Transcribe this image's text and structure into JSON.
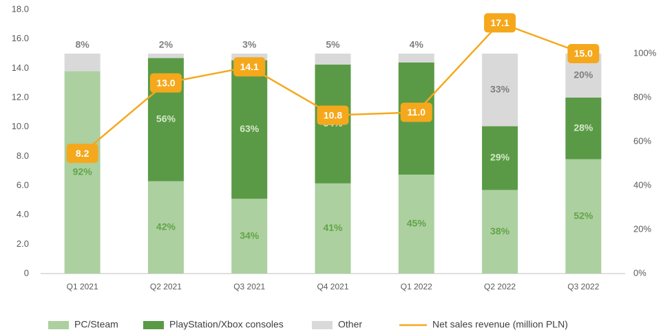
{
  "chart_data": {
    "type": "bar-line",
    "categories": [
      "Q1 2021",
      "Q2 2021",
      "Q3 2021",
      "Q4 2021",
      "Q1 2022",
      "Q2 2022",
      "Q3 2022"
    ],
    "series": [
      {
        "name": "PC/Steam",
        "type": "bar",
        "axis": "y2",
        "color": "#acd0a0",
        "label_color": "#62a447",
        "values": [
          92,
          42,
          34,
          41,
          45,
          38,
          52
        ],
        "value_labels": [
          "92%",
          "42%",
          "34%",
          "41%",
          "45%",
          "38%",
          "52%"
        ]
      },
      {
        "name": "PlayStation/Xbox consoles",
        "type": "bar",
        "axis": "y2",
        "color": "#5a9a46",
        "label_color": "#d4e8c8",
        "values": [
          0,
          56,
          63,
          54,
          51,
          29,
          28
        ],
        "value_labels": [
          null,
          "56%",
          "63%",
          "54%",
          "51%",
          "29%",
          "28%"
        ]
      },
      {
        "name": "Other",
        "type": "bar",
        "axis": "y2",
        "color": "#d9d9d9",
        "label_color": "#7f7f7f",
        "values": [
          8,
          2,
          3,
          5,
          4,
          33,
          20
        ],
        "value_labels": [
          "8%",
          "2%",
          "3%",
          "5%",
          "4%",
          "33%",
          "20%"
        ]
      },
      {
        "name": "Net sales revenue (million PLN)",
        "type": "line",
        "color": "#f5a81c",
        "values": [
          8.2,
          13.0,
          14.1,
          10.8,
          11.0,
          17.1,
          15.0
        ],
        "value_labels": [
          "8.2",
          "13.0",
          "14.1",
          "10.8",
          "11.0",
          "17.1",
          "15.0"
        ]
      }
    ],
    "ylim": [
      0,
      18
    ],
    "yticks": [
      0,
      {
        "value": 2,
        "label": "2.0"
      },
      {
        "value": 4,
        "label": "4.0"
      },
      {
        "value": 6,
        "label": "6.0"
      },
      {
        "value": 8,
        "label": "8.0"
      },
      {
        "value": 10,
        "label": "10.0"
      },
      {
        "value": 12,
        "label": "12.0"
      },
      {
        "value": 14,
        "label": "14.0"
      },
      {
        "value": 16,
        "label": "16.0"
      },
      {
        "value": 18,
        "label": "18.0"
      }
    ],
    "y2lim": [
      0,
      120
    ],
    "y2ticks": [
      {
        "value": 0,
        "label": "0%"
      },
      {
        "value": 20,
        "label": "20%"
      },
      {
        "value": 40,
        "label": "40%"
      },
      {
        "value": 60,
        "label": "60%"
      },
      {
        "value": 80,
        "label": "80%"
      },
      {
        "value": 100,
        "label": "100%"
      }
    ],
    "grid": false,
    "legend": "bottom"
  }
}
